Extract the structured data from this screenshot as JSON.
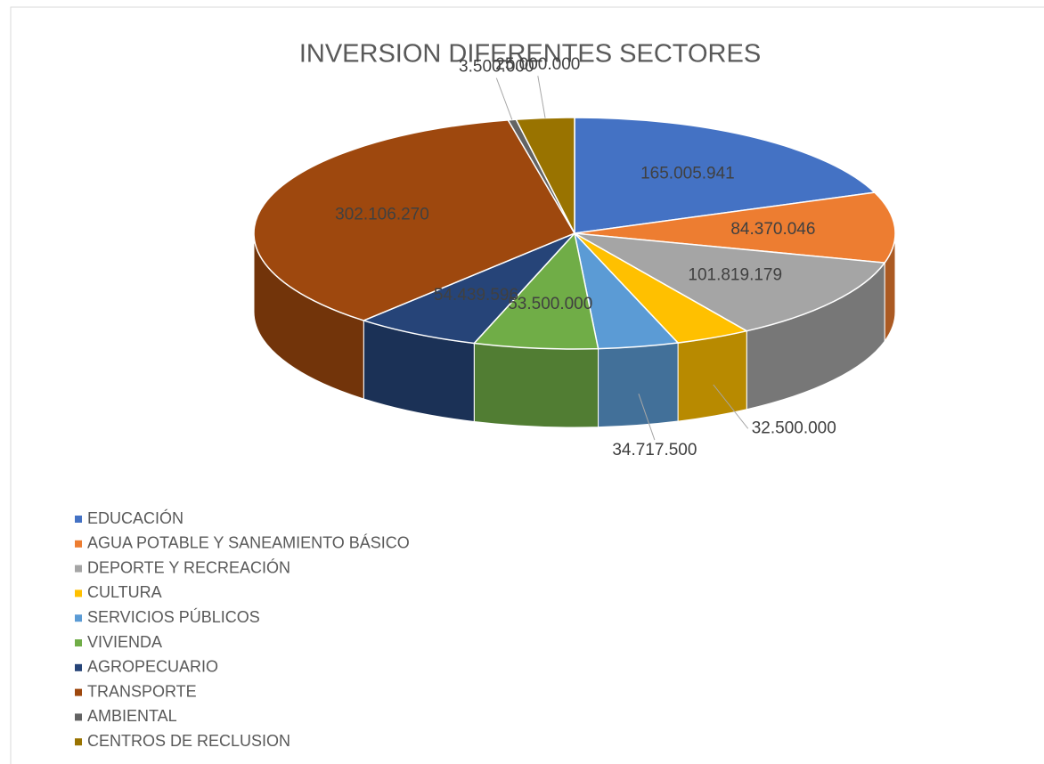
{
  "chart_data": {
    "type": "pie3d",
    "title": "INVERSION DIFERENTES SECTORES",
    "categories": [
      "EDUCACIÓN",
      "AGUA POTABLE Y SANEAMIENTO BÁSICO",
      "DEPORTE Y RECREACIÓN",
      "CULTURA",
      "SERVICIOS PÚBLICOS",
      "VIVIENDA",
      "AGROPECUARIO",
      "TRANSPORTE",
      "AMBIENTAL",
      "CENTROS DE RECLUSION"
    ],
    "values": [
      165005941,
      84370046,
      101819179,
      32500000,
      34717500,
      53500000,
      54439596,
      302106270,
      3500000,
      25000000
    ],
    "value_labels": [
      "165.005.941",
      "84.370.046",
      "101.819.179",
      "32.500.000",
      "34.717.500",
      "53.500.000",
      "54.439.596",
      "302.106.270",
      "3.500.000",
      "25.000.000"
    ],
    "colors": [
      "#4472c4",
      "#ed7d31",
      "#a5a5a5",
      "#ffc000",
      "#5b9bd5",
      "#70ad47",
      "#264478",
      "#9e480e",
      "#636363",
      "#997300"
    ],
    "legend": "bottom-left"
  }
}
